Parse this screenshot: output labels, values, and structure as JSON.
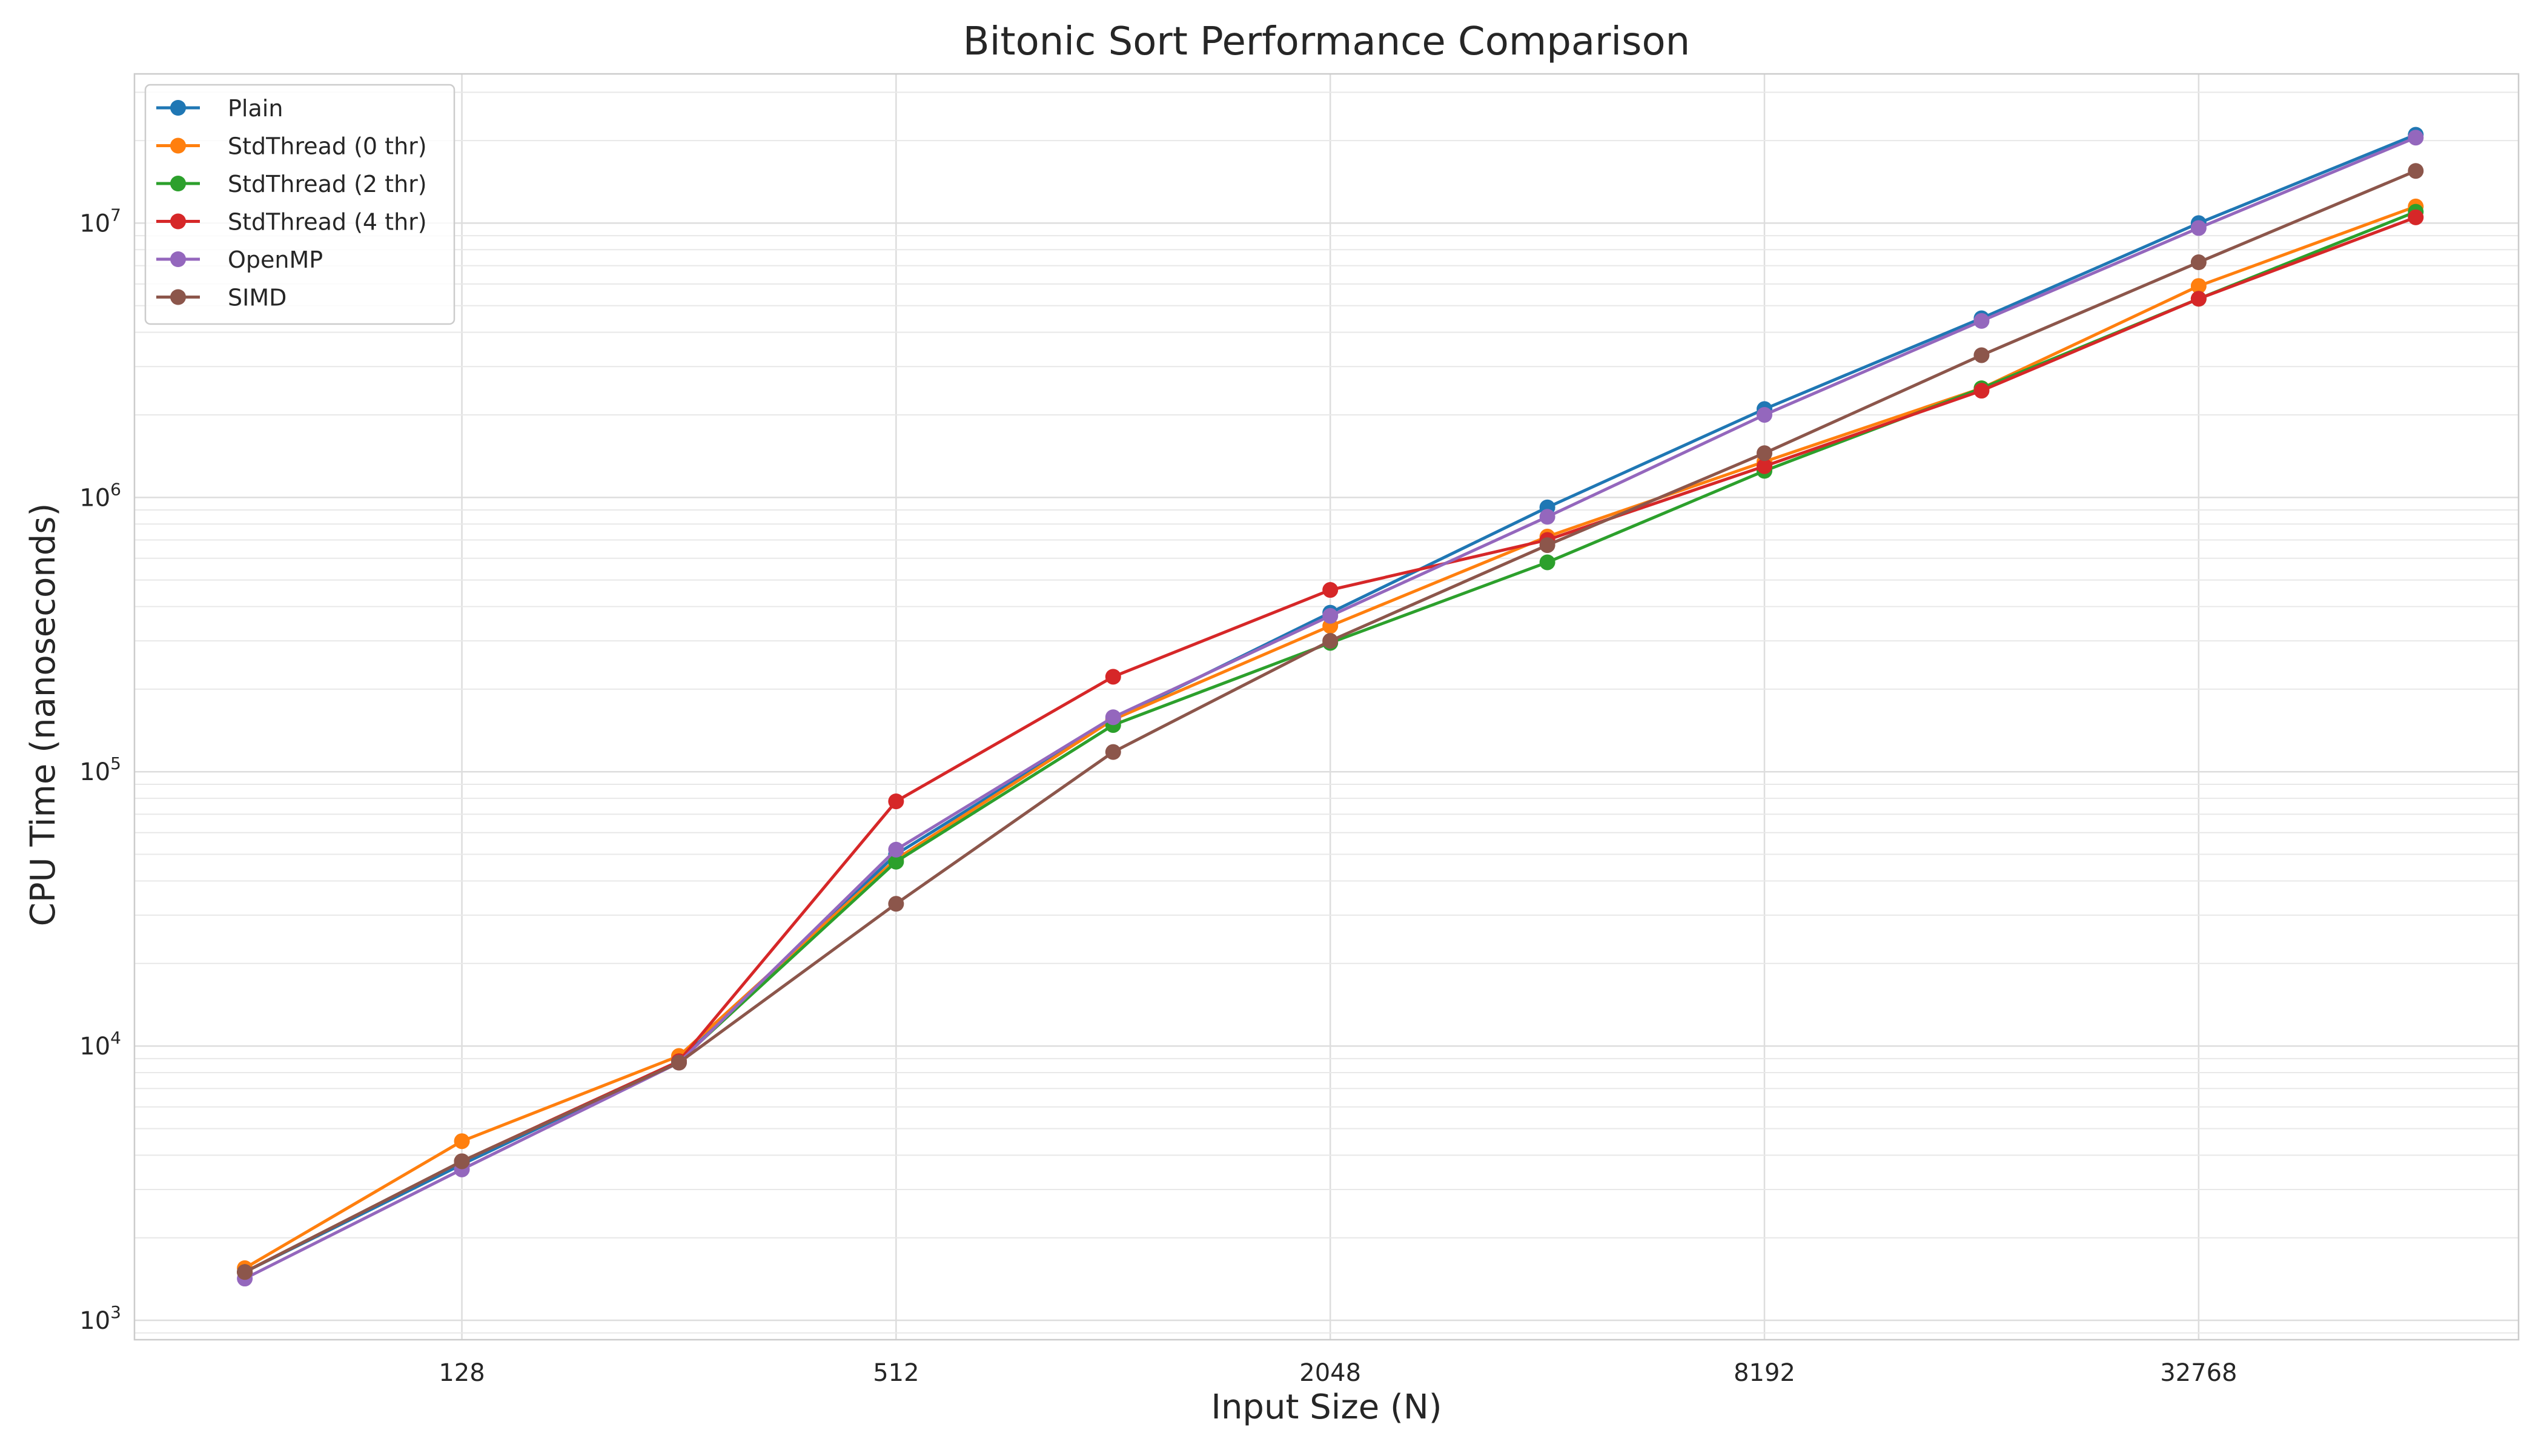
{
  "chart_data": {
    "type": "line",
    "title": "Bitonic Sort Performance Comparison",
    "xlabel": "Input Size (N)",
    "ylabel": "CPU Time (nanoseconds)",
    "x_scale": "log2",
    "y_scale": "log10",
    "x": [
      64,
      128,
      256,
      512,
      1024,
      2048,
      4096,
      8192,
      16384,
      32768,
      65536
    ],
    "x_ticks": [
      "128",
      "512",
      "2048",
      "8192",
      "32768"
    ],
    "x_tick_values": [
      128,
      512,
      2048,
      8192,
      32768
    ],
    "xlim": [
      45,
      91000
    ],
    "ylim": [
      850,
      35000000
    ],
    "y_ticks": [
      {
        "value": 1000,
        "base": "10",
        "exp": "3"
      },
      {
        "value": 10000,
        "base": "10",
        "exp": "4"
      },
      {
        "value": 100000,
        "base": "10",
        "exp": "5"
      },
      {
        "value": 1000000,
        "base": "10",
        "exp": "6"
      },
      {
        "value": 10000000,
        "base": "10",
        "exp": "7"
      }
    ],
    "grid": true,
    "legend_position": "top-left",
    "series": [
      {
        "name": "Plain",
        "color": "#1f77b4",
        "values": [
          1500,
          3700,
          8800,
          50000,
          155000,
          380000,
          920000,
          2100000,
          4500000,
          10000000,
          21000000
        ]
      },
      {
        "name": "StdThread (0 thr)",
        "color": "#ff7f0e",
        "values": [
          1550,
          4500,
          9200,
          48000,
          155000,
          340000,
          720000,
          1350000,
          2500000,
          5900000,
          11500000
        ]
      },
      {
        "name": "StdThread (2 thr)",
        "color": "#2ca02c",
        "values": [
          1500,
          3800,
          8800,
          47000,
          148000,
          295000,
          580000,
          1250000,
          2500000,
          5300000,
          11000000
        ]
      },
      {
        "name": "StdThread (4 thr)",
        "color": "#d62728",
        "values": [
          1500,
          3800,
          8800,
          78000,
          222000,
          460000,
          700000,
          1300000,
          2450000,
          5300000,
          10500000
        ]
      },
      {
        "name": "OpenMP",
        "color": "#9467bd",
        "values": [
          1420,
          3550,
          8700,
          52000,
          158000,
          370000,
          850000,
          2000000,
          4400000,
          9600000,
          20500000
        ]
      },
      {
        "name": "SIMD",
        "color": "#8c564b",
        "values": [
          1500,
          3800,
          8700,
          33000,
          118000,
          300000,
          670000,
          1450000,
          3300000,
          7200000,
          15500000
        ]
      }
    ]
  }
}
